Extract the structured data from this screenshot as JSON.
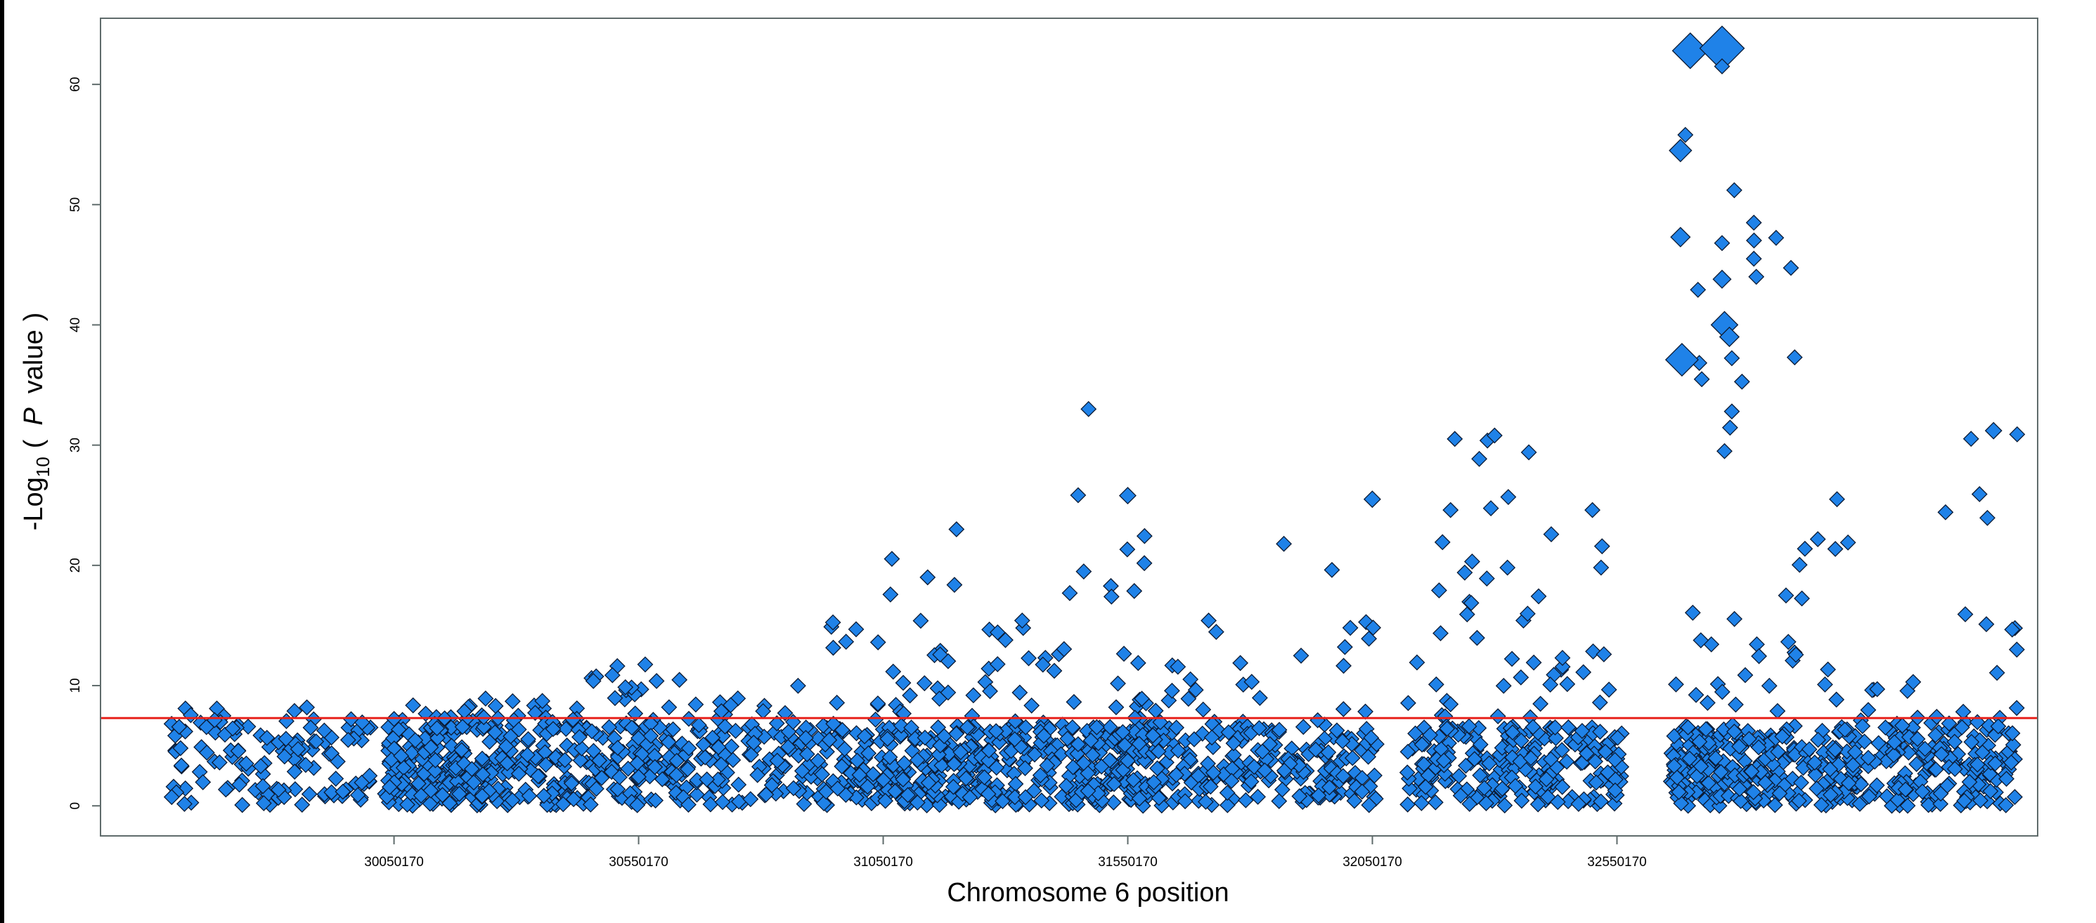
{
  "chart_data": {
    "type": "scatter",
    "xlabel": "Chromosome 6 position",
    "ylabel": {
      "prefix": "-Log",
      "subscript": "10",
      "paren_open": "(",
      "italic": "P",
      "suffix": "value",
      "paren_close": ")"
    },
    "xlim": [
      29450170,
      33410170
    ],
    "ylim": [
      -2.5,
      65.5
    ],
    "x_ticks": [
      {
        "value": 30050170,
        "label": "30050170"
      },
      {
        "value": 30550170,
        "label": "30550170"
      },
      {
        "value": 31050170,
        "label": "31050170"
      },
      {
        "value": 31550170,
        "label": "31550170"
      },
      {
        "value": 32050170,
        "label": "32050170"
      },
      {
        "value": 32550170,
        "label": "32550170"
      }
    ],
    "y_ticks": [
      {
        "value": 0,
        "label": "0"
      },
      {
        "value": 10,
        "label": "10"
      },
      {
        "value": 20,
        "label": "20"
      },
      {
        "value": 30,
        "label": "30"
      },
      {
        "value": 40,
        "label": "40"
      },
      {
        "value": 50,
        "label": "50"
      },
      {
        "value": 60,
        "label": "60"
      }
    ],
    "threshold": {
      "value": 7.3,
      "color": "#e8221c"
    },
    "marker": {
      "shape": "diamond",
      "fill": "#1f82e8",
      "stroke": "#0b1a33"
    },
    "grid": false,
    "legend": "none",
    "clusters": [
      {
        "x0": 29590000,
        "x1": 29800000,
        "maxP": 8.3,
        "density": 60
      },
      {
        "x0": 29800000,
        "x1": 30010000,
        "maxP": 8.5,
        "density": 65
      },
      {
        "x0": 30030000,
        "x1": 30230000,
        "maxP": 8.6,
        "density": 180
      },
      {
        "x0": 30230000,
        "x1": 30450000,
        "maxP": 9.3,
        "density": 150
      },
      {
        "x0": 30450000,
        "x1": 30650000,
        "maxP": 11.8,
        "density": 130
      },
      {
        "x0": 30650000,
        "x1": 30850000,
        "maxP": 9.0,
        "density": 90
      },
      {
        "x0": 30850000,
        "x1": 31050000,
        "maxP": 15.3,
        "density": 110
      },
      {
        "x0": 31050000,
        "x1": 31250000,
        "maxP": 23.0,
        "density": 160
      },
      {
        "x0": 31250000,
        "x1": 31420000,
        "maxP": 15.5,
        "density": 110
      },
      {
        "x0": 31420000,
        "x1": 31600000,
        "maxP": 26.0,
        "density": 170
      },
      {
        "x0": 31600000,
        "x1": 31800000,
        "maxP": 18.5,
        "density": 110
      },
      {
        "x0": 31800000,
        "x1": 32060000,
        "maxP": 25.5,
        "density": 130
      },
      {
        "x0": 32120000,
        "x1": 32330000,
        "maxP": 30.8,
        "density": 130
      },
      {
        "x0": 32330000,
        "x1": 32560000,
        "maxP": 24.6,
        "density": 150
      },
      {
        "x0": 32660000,
        "x1": 32780000,
        "maxP": 55.8,
        "density": 120
      },
      {
        "x0": 32780000,
        "x1": 32920000,
        "maxP": 51.0,
        "density": 110
      },
      {
        "x0": 32920000,
        "x1": 33050000,
        "maxP": 25.5,
        "density": 90
      },
      {
        "x0": 33050000,
        "x1": 33210000,
        "maxP": 10.5,
        "density": 90
      },
      {
        "x0": 33210000,
        "x1": 33370000,
        "maxP": 31.2,
        "density": 100
      }
    ],
    "highlights": [
      {
        "x": 32700000,
        "y": 62.8,
        "size": 2.4
      },
      {
        "x": 32765000,
        "y": 63.0,
        "size": 3.0
      },
      {
        "x": 32765000,
        "y": 61.5,
        "size": 1.0
      },
      {
        "x": 32680000,
        "y": 54.5,
        "size": 1.5
      },
      {
        "x": 32690000,
        "y": 55.8,
        "size": 1.0
      },
      {
        "x": 32680000,
        "y": 47.3,
        "size": 1.3
      },
      {
        "x": 32765000,
        "y": 43.8,
        "size": 1.2
      },
      {
        "x": 32765000,
        "y": 46.8,
        "size": 1.0
      },
      {
        "x": 32770000,
        "y": 40.0,
        "size": 1.8
      },
      {
        "x": 32780000,
        "y": 39.0,
        "size": 1.3
      },
      {
        "x": 32683000,
        "y": 37.1,
        "size": 2.2
      },
      {
        "x": 32790000,
        "y": 51.2,
        "size": 1.0
      },
      {
        "x": 32830000,
        "y": 48.5,
        "size": 1.0
      },
      {
        "x": 32830000,
        "y": 45.5,
        "size": 1.0
      },
      {
        "x": 32835000,
        "y": 44.0,
        "size": 1.0
      },
      {
        "x": 31470000,
        "y": 33.0,
        "size": 1.0
      },
      {
        "x": 31550000,
        "y": 25.8,
        "size": 1.1
      },
      {
        "x": 32300000,
        "y": 30.8,
        "size": 1.0
      },
      {
        "x": 32370000,
        "y": 29.4,
        "size": 1.0
      },
      {
        "x": 33320000,
        "y": 31.2,
        "size": 1.1
      },
      {
        "x": 32050000,
        "y": 25.5,
        "size": 1.1
      },
      {
        "x": 31200000,
        "y": 23.0,
        "size": 1.0
      },
      {
        "x": 32500000,
        "y": 24.6,
        "size": 1.0
      },
      {
        "x": 32210000,
        "y": 24.6,
        "size": 1.0
      },
      {
        "x": 33000000,
        "y": 25.5,
        "size": 1.0
      },
      {
        "x": 32785000,
        "y": 32.8,
        "size": 1.0
      },
      {
        "x": 32770000,
        "y": 29.5,
        "size": 1.0
      }
    ]
  }
}
